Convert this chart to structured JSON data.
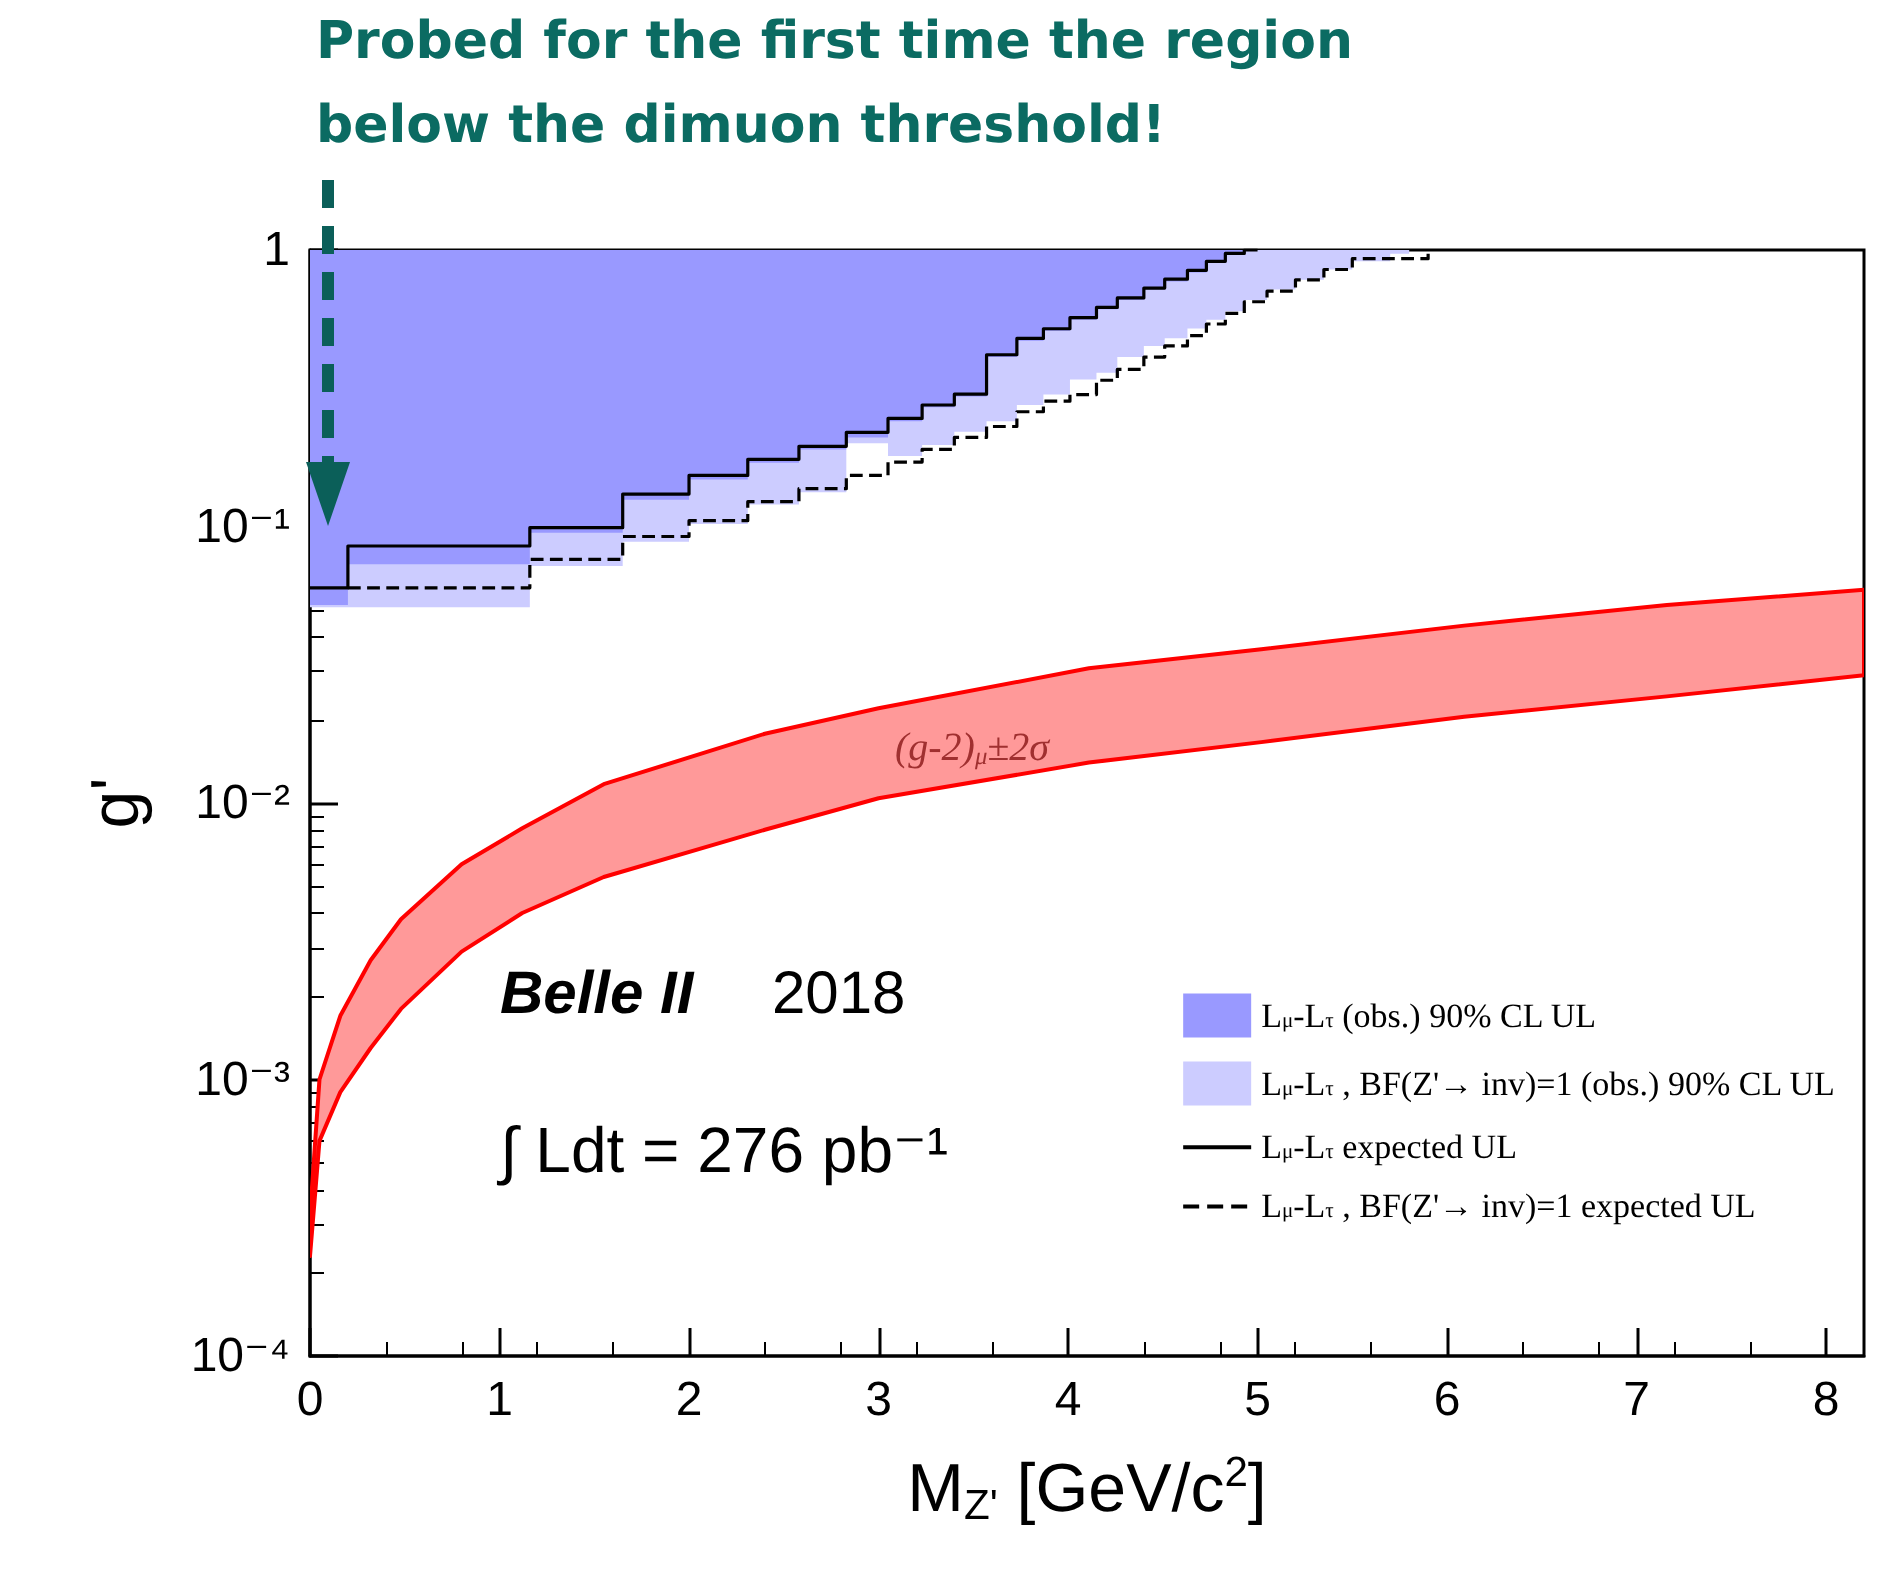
{
  "chart_data": {
    "type": "step",
    "xlabel": "M$_{Z'}$ [GeV/c$^{2}$]",
    "ylabel": "g'",
    "xlim": [
      0,
      8.2
    ],
    "xticks": [
      0,
      1,
      2,
      3,
      4,
      5,
      6,
      7,
      8
    ],
    "ylim": [
      0.0001,
      1
    ],
    "log": "y",
    "yticks": [
      {
        "value": 0.0001,
        "label": "10⁻⁴"
      },
      {
        "value": 0.001,
        "label": "10⁻³"
      },
      {
        "value": 0.01,
        "label": "10⁻²"
      },
      {
        "value": 0.1,
        "label": "10⁻¹"
      },
      1
    ],
    "legend": "bottom right",
    "series": [
      {
        "name": "L$_{μ}$-L$_{τ}$ , BF(Z'→ inv)=1 (obs.) 90% CL UL",
        "type": "area",
        "color": "#ccccff",
        "x": [
          0,
          0,
          1.16,
          1.16,
          1.65,
          1.65,
          2.0,
          2.0,
          2.31,
          2.31,
          2.58,
          2.58,
          2.83,
          2.83,
          3.05,
          3.05,
          3.23,
          3.23,
          3.4,
          3.4,
          3.57,
          3.57,
          3.73,
          3.73,
          3.87,
          3.87,
          4.01,
          4.01,
          4.15,
          4.15,
          4.26,
          4.26,
          4.4,
          4.4,
          4.51,
          4.51,
          4.63,
          4.63,
          4.73,
          4.73,
          4.83,
          4.83,
          4.93,
          4.93,
          5.05,
          5.05,
          5.2,
          5.2,
          5.35,
          5.35,
          5.5,
          5.5,
          5.7,
          5.7,
          5.8,
          5.8,
          5.93
        ],
        "values": [
          1,
          0.051,
          0.051,
          0.072,
          0.072,
          0.088,
          0.088,
          0.102,
          0.102,
          0.12,
          0.12,
          0.133,
          0.133,
          0.2,
          0.2,
          0.18,
          0.18,
          0.197,
          0.197,
          0.22,
          0.22,
          0.24,
          0.24,
          0.275,
          0.275,
          0.3,
          0.3,
          0.34,
          0.34,
          0.36,
          0.36,
          0.41,
          0.41,
          0.45,
          0.45,
          0.48,
          0.48,
          0.52,
          0.52,
          0.56,
          0.56,
          0.6,
          0.6,
          0.66,
          0.66,
          0.72,
          0.72,
          0.78,
          0.78,
          0.85,
          0.85,
          0.91,
          0.91,
          0.97,
          0.97,
          1,
          1
        ]
      },
      {
        "name": "L$_{μ}$-L$_{τ}$ (obs.) 90% CL UL",
        "type": "area",
        "color": "#9999ff",
        "x": [
          0,
          0,
          0.2,
          0.2,
          1.16,
          1.16,
          1.65,
          1.65,
          2.0,
          2.0,
          2.31,
          2.31,
          2.58,
          2.58,
          2.83,
          2.83,
          3.05,
          3.05,
          3.23,
          3.23,
          3.4,
          3.4,
          3.57,
          3.57,
          3.73,
          3.73,
          3.87,
          3.87,
          4.01,
          4.01,
          4.15,
          4.15,
          4.26,
          4.26,
          4.4,
          4.4,
          4.51,
          4.51,
          4.63,
          4.63,
          4.73,
          4.73,
          4.83,
          4.83,
          4.93,
          4.93,
          5.0
        ],
        "values": [
          1,
          0.052,
          0.052,
          0.073,
          0.073,
          0.095,
          0.095,
          0.125,
          0.125,
          0.148,
          0.148,
          0.17,
          0.17,
          0.19,
          0.19,
          0.21,
          0.21,
          0.24,
          0.24,
          0.27,
          0.27,
          0.295,
          0.295,
          0.41,
          0.41,
          0.47,
          0.47,
          0.51,
          0.51,
          0.56,
          0.56,
          0.61,
          0.61,
          0.66,
          0.66,
          0.72,
          0.72,
          0.77,
          0.77,
          0.83,
          0.83,
          0.9,
          0.9,
          0.96,
          0.96,
          1,
          1
        ]
      },
      {
        "name": "L$_{μ}$-L$_{τ}$ expected UL",
        "color": "#000000",
        "line_style": "solid",
        "x": [
          0,
          0.2,
          1.16,
          1.65,
          2.0,
          2.31,
          2.58,
          2.83,
          3.05,
          3.23,
          3.4,
          3.57,
          3.73,
          3.87,
          4.01,
          4.15,
          4.26,
          4.4,
          4.51,
          4.63,
          4.73,
          4.83,
          4.93,
          5.0
        ],
        "values": [
          0.06,
          0.085,
          0.099,
          0.131,
          0.153,
          0.175,
          0.195,
          0.219,
          0.246,
          0.275,
          0.301,
          0.418,
          0.479,
          0.519,
          0.569,
          0.62,
          0.671,
          0.728,
          0.784,
          0.844,
          0.91,
          0.972,
          1,
          1
        ]
      },
      {
        "name": "L$_{μ}$-L$_{τ}$ , BF(Z'→ inv)=1 expected UL",
        "color": "#000000",
        "line_style": "dashed",
        "x": [
          0.2,
          1.16,
          1.65,
          2.0,
          2.31,
          2.58,
          2.83,
          3.05,
          3.23,
          3.4,
          3.57,
          3.73,
          3.87,
          4.01,
          4.15,
          4.26,
          4.4,
          4.51,
          4.63,
          4.73,
          4.83,
          4.93,
          5.05,
          5.2,
          5.35,
          5.5,
          5.9
        ],
        "values": [
          0.06,
          0.076,
          0.092,
          0.105,
          0.123,
          0.137,
          0.153,
          0.171,
          0.19,
          0.21,
          0.23,
          0.26,
          0.284,
          0.3,
          0.338,
          0.37,
          0.41,
          0.45,
          0.49,
          0.54,
          0.59,
          0.65,
          0.71,
          0.78,
          0.85,
          0.93,
          1
        ]
      },
      {
        "type": "area",
        "color": "#ff9999",
        "x": [
          0,
          0.05,
          0.16,
          0.32,
          0.48,
          0.8,
          1.12,
          1.55,
          2.4,
          3.0,
          4.11,
          5.02,
          6.09,
          7.16,
          8.2
        ],
        "lower": [
          0.00023,
          0.0006,
          0.0009,
          0.0013,
          0.0018,
          0.0029,
          0.004,
          0.0054,
          0.008,
          0.0104,
          0.014,
          0.0166,
          0.0205,
          0.0243,
          0.029
        ],
        "values": [
          null,
          null,
          null,
          null,
          null,
          null,
          null,
          null,
          null,
          null,
          null,
          null,
          null,
          null,
          null
        ],
        "upper": [
          0.00032,
          0.001,
          0.0017,
          0.0027,
          0.0038,
          0.006,
          0.0081,
          0.0117,
          0.0178,
          0.022,
          0.0307,
          0.036,
          0.0438,
          0.052,
          0.059
        ]
      }
    ],
    "annotations": [
      "Probed for the first time the region below the dimuon threshold!",
      "(g-2)$_{μ}$±2σ",
      "Belle II",
      "2018",
      "∫ Ldt = 276 pb⁻¹"
    ]
  }
}
